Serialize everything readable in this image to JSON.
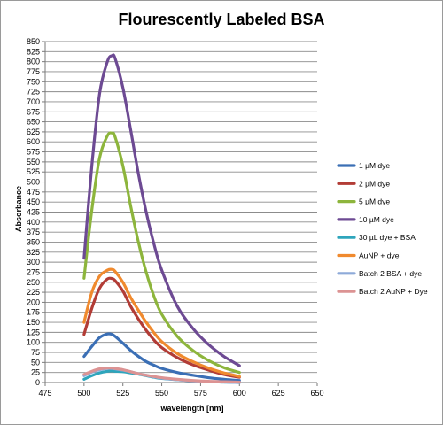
{
  "chart_data": {
    "type": "line",
    "title": "Flourescently Labeled BSA",
    "xlabel": "wavelength [nm]",
    "ylabel": "Absorbance",
    "xlim": [
      475,
      650
    ],
    "ylim": [
      0,
      850
    ],
    "xticks": [
      475,
      500,
      525,
      550,
      575,
      600,
      625,
      650
    ],
    "yticks": [
      0,
      25,
      50,
      75,
      100,
      125,
      150,
      175,
      200,
      225,
      250,
      275,
      300,
      325,
      350,
      375,
      400,
      425,
      450,
      475,
      500,
      525,
      550,
      575,
      600,
      625,
      650,
      675,
      700,
      725,
      750,
      775,
      800,
      825,
      850
    ],
    "grid": true,
    "legend_position": "right",
    "x": [
      500,
      505,
      510,
      515,
      518,
      520,
      525,
      530,
      535,
      540,
      545,
      550,
      560,
      570,
      580,
      590,
      600
    ],
    "series": [
      {
        "name": "1 µM dye",
        "color": "#3b6fb5",
        "values": [
          65,
          90,
          112,
          121,
          120,
          115,
          98,
          80,
          65,
          52,
          43,
          35,
          25,
          18,
          12,
          8,
          5
        ]
      },
      {
        "name": "2 µM dye",
        "color": "#b23c36",
        "values": [
          120,
          185,
          235,
          258,
          259,
          254,
          228,
          190,
          158,
          130,
          106,
          87,
          62,
          44,
          31,
          20,
          13
        ]
      },
      {
        "name": "5 µM dye",
        "color": "#8db53c",
        "values": [
          260,
          430,
          560,
          615,
          622,
          612,
          540,
          440,
          350,
          275,
          215,
          170,
          115,
          80,
          55,
          37,
          25
        ]
      },
      {
        "name": "10 µM dye",
        "color": "#6d4a93",
        "values": [
          310,
          540,
          720,
          800,
          815,
          808,
          735,
          630,
          520,
          425,
          345,
          280,
          190,
          135,
          95,
          65,
          42
        ]
      },
      {
        "name": "30 µL dye + BSA",
        "color": "#2ea5bc",
        "values": [
          8,
          17,
          24,
          28,
          29,
          28,
          27,
          24,
          21,
          17,
          13,
          10,
          7,
          4,
          2,
          1,
          0
        ]
      },
      {
        "name": "AuNP + dye",
        "color": "#f08a2e",
        "values": [
          150,
          225,
          265,
          280,
          282,
          277,
          250,
          212,
          180,
          150,
          124,
          102,
          72,
          52,
          36,
          24,
          15
        ]
      },
      {
        "name": "Batch 2 BSA + dye",
        "color": "#8eaad9",
        "values": [
          17,
          26,
          32,
          35,
          35,
          34,
          31,
          27,
          22,
          18,
          14,
          11,
          7,
          4,
          2,
          1,
          0
        ]
      },
      {
        "name": "Batch 2 AuNP + Dye",
        "color": "#dc9393",
        "values": [
          20,
          28,
          34,
          36,
          36,
          35,
          32,
          27,
          22,
          18,
          15,
          12,
          8,
          5,
          3,
          2,
          1
        ]
      }
    ]
  }
}
